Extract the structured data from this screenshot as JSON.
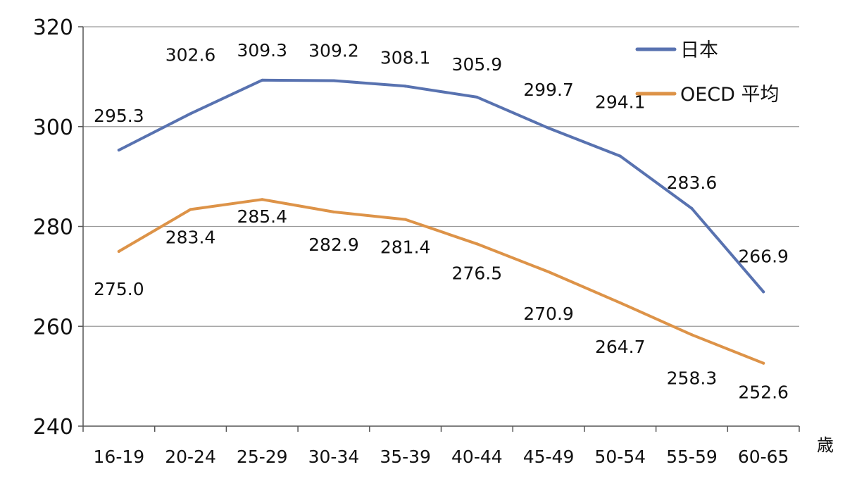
{
  "chart_data": {
    "type": "line",
    "title": "",
    "xlabel": "",
    "ylabel": "",
    "x_unit": "歳",
    "categories": [
      "16-19",
      "20-24",
      "25-29",
      "30-34",
      "35-39",
      "40-44",
      "45-49",
      "50-54",
      "55-59",
      "60-65"
    ],
    "series": [
      {
        "name": "日本",
        "color": "#5872b0",
        "values": [
          295.3,
          302.6,
          309.3,
          309.2,
          308.1,
          305.9,
          299.7,
          294.1,
          283.6,
          266.9
        ],
        "labels": [
          "295.3",
          "302.6",
          "309.3",
          "309.2",
          "308.1",
          "305.9",
          "299.7",
          "294.1",
          "283.6",
          "266.9"
        ]
      },
      {
        "name": "OECD 平均",
        "color": "#dd9348",
        "values": [
          275.0,
          283.4,
          285.4,
          282.9,
          281.4,
          276.5,
          270.9,
          264.7,
          258.3,
          252.6
        ],
        "labels": [
          "275.0",
          "283.4",
          "285.4",
          "282.9",
          "281.4",
          "276.5",
          "270.9",
          "264.7",
          "258.3",
          "252.6"
        ]
      }
    ],
    "ylim": [
      240,
      320
    ],
    "yticks": [
      "240",
      "260",
      "280",
      "300",
      "320"
    ],
    "grid": true,
    "legend_position": "top-right"
  }
}
